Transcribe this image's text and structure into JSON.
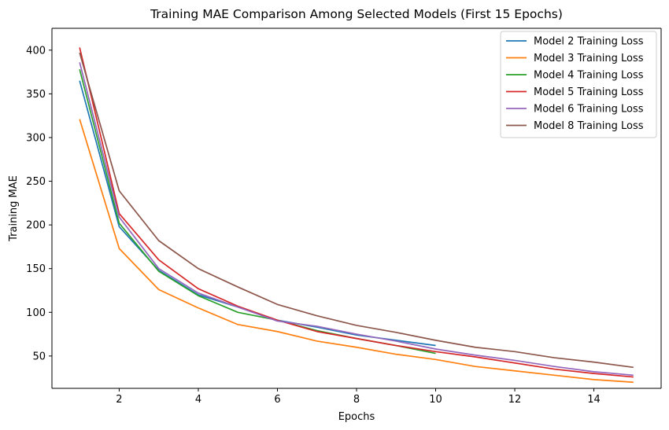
{
  "chart_data": {
    "type": "line",
    "title": "Training MAE Comparison Among Selected Models (First 15 Epochs)",
    "xlabel": "Epochs",
    "ylabel": "Training MAE",
    "xlim": [
      0.3,
      15.7
    ],
    "ylim": [
      13,
      425
    ],
    "xticks": [
      2,
      4,
      6,
      8,
      10,
      12,
      14
    ],
    "yticks": [
      50,
      100,
      150,
      200,
      250,
      300,
      350,
      400
    ],
    "grid": false,
    "legend_position": "top-right",
    "series": [
      {
        "name": "Model 2 Training Loss",
        "color": "#1f77b4",
        "x": [
          1,
          2,
          3,
          4,
          5,
          6,
          7,
          8,
          9,
          10
        ],
        "y": [
          365,
          198,
          148,
          120,
          106,
          91,
          83,
          74,
          68,
          62
        ]
      },
      {
        "name": "Model 3 Training Loss",
        "color": "#ff7f0e",
        "x": [
          1,
          2,
          3,
          4,
          5,
          6,
          7,
          8,
          9,
          10,
          11,
          12,
          13,
          14,
          15
        ],
        "y": [
          321,
          173,
          126,
          105,
          86,
          78,
          67,
          60,
          52,
          46,
          38,
          33,
          28,
          23,
          20
        ]
      },
      {
        "name": "Model 4 Training Loss",
        "color": "#2ca02c",
        "x": [
          1,
          2,
          3,
          4,
          5,
          6,
          7,
          8,
          9,
          10
        ],
        "y": [
          378,
          202,
          147,
          119,
          100,
          91,
          79,
          70,
          62,
          53
        ]
      },
      {
        "name": "Model 5 Training Loss",
        "color": "#d62728",
        "x": [
          1,
          2,
          3,
          4,
          5,
          6,
          7,
          8,
          9,
          10,
          11,
          12,
          13,
          14,
          15
        ],
        "y": [
          403,
          213,
          160,
          127,
          107,
          91,
          78,
          70,
          62,
          55,
          49,
          42,
          35,
          30,
          26
        ]
      },
      {
        "name": "Model 6 Training Loss",
        "color": "#9467bd",
        "x": [
          1,
          2,
          3,
          4,
          5,
          6,
          7,
          8,
          9,
          10,
          11,
          12,
          13,
          14,
          15
        ],
        "y": [
          386,
          209,
          150,
          122,
          106,
          90,
          84,
          75,
          67,
          58,
          51,
          45,
          38,
          32,
          28
        ]
      },
      {
        "name": "Model 8 Training Loss",
        "color": "#8c564b",
        "x": [
          1,
          2,
          3,
          4,
          5,
          6,
          7,
          8,
          9,
          10,
          11,
          12,
          13,
          14,
          15
        ],
        "y": [
          397,
          239,
          182,
          150,
          129,
          109,
          96,
          85,
          77,
          68,
          60,
          55,
          48,
          43,
          37
        ]
      }
    ]
  }
}
